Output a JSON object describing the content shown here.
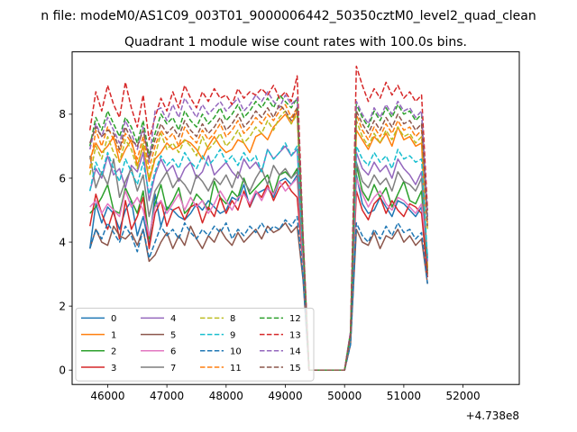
{
  "chart_data": {
    "type": "line",
    "suptitle": "n file: modeM0/AS1C09_003T01_9000006442_50350cztM0_level2_quad_clean",
    "title": "Quadrant 1 module wise count rates with 100.0s bins.",
    "xlabel": "",
    "ylabel": "",
    "x_offset_label": "+4.738e8",
    "xlim": [
      45400,
      52950
    ],
    "ylim": [
      -0.45,
      9.95
    ],
    "xticks": [
      46000,
      47000,
      48000,
      49000,
      50000,
      51000,
      52000
    ],
    "yticks": [
      0,
      2,
      4,
      6,
      8
    ],
    "x_start": 45700,
    "x_step": 100,
    "grid": false,
    "legend": {
      "placement": "lower-left",
      "columns": 4
    },
    "series": [
      {
        "name": "0",
        "color": "#1f77b4",
        "dash": "solid",
        "values": [
          3.8,
          5.2,
          4.6,
          5.1,
          4.9,
          4.4,
          5.0,
          5.3,
          4.2,
          4.8,
          3.9,
          5.5,
          4.5,
          5.1,
          5.0,
          4.8,
          4.7,
          4.9,
          5.2,
          5.0,
          5.3,
          5.1,
          4.9,
          5.0,
          5.4,
          5.3,
          5.8,
          5.1,
          5.5,
          5.6,
          5.7,
          5.4,
          5.9,
          6.0,
          5.8,
          6.1,
          3.4,
          0.0,
          0.0,
          0.0,
          0.0,
          0.0,
          0.0,
          0.0,
          1.0,
          6.1,
          5.2,
          4.9,
          5.0,
          5.4,
          5.1,
          4.8,
          5.3,
          5.2,
          5.0,
          4.8,
          5.1,
          3.1
        ]
      },
      {
        "name": "1",
        "color": "#ff7f0e",
        "dash": "solid",
        "values": [
          6.6,
          7.1,
          6.8,
          7.0,
          7.3,
          6.5,
          6.9,
          7.2,
          6.4,
          7.0,
          5.9,
          6.6,
          6.8,
          7.1,
          6.9,
          7.0,
          7.2,
          7.1,
          6.9,
          6.6,
          7.0,
          7.3,
          7.0,
          6.8,
          6.9,
          7.2,
          7.1,
          6.8,
          7.3,
          7.4,
          7.2,
          7.6,
          7.8,
          8.0,
          7.7,
          8.1,
          3.8,
          0.0,
          0.0,
          0.0,
          0.0,
          0.0,
          0.0,
          0.0,
          1.0,
          7.5,
          7.2,
          6.9,
          7.3,
          7.1,
          7.4,
          7.0,
          7.6,
          7.2,
          7.3,
          7.0,
          7.1,
          3.2
        ]
      },
      {
        "name": "2",
        "color": "#2ca02c",
        "dash": "solid",
        "values": [
          4.9,
          5.1,
          5.4,
          5.8,
          5.0,
          4.9,
          5.7,
          5.3,
          4.9,
          5.6,
          4.1,
          5.2,
          5.8,
          5.0,
          5.3,
          5.7,
          4.9,
          5.1,
          5.5,
          5.3,
          5.0,
          5.9,
          5.4,
          5.2,
          5.6,
          5.4,
          6.0,
          5.5,
          5.7,
          5.9,
          6.1,
          5.5,
          6.1,
          6.2,
          6.0,
          6.3,
          3.5,
          0.0,
          0.0,
          0.0,
          0.0,
          0.0,
          0.0,
          0.0,
          1.0,
          6.4,
          5.6,
          5.3,
          5.8,
          5.4,
          5.7,
          5.1,
          5.5,
          5.9,
          5.3,
          5.2,
          5.6,
          3.0
        ]
      },
      {
        "name": "3",
        "color": "#d62728",
        "dash": "solid",
        "values": [
          4.5,
          5.5,
          4.9,
          4.4,
          5.0,
          4.1,
          5.3,
          4.4,
          4.8,
          5.4,
          3.8,
          4.9,
          5.3,
          4.5,
          5.0,
          5.1,
          4.7,
          5.1,
          5.2,
          4.6,
          5.1,
          4.8,
          5.4,
          4.9,
          5.3,
          5.0,
          5.6,
          5.1,
          5.6,
          5.4,
          5.8,
          5.3,
          5.7,
          5.9,
          5.6,
          5.4,
          3.3,
          0.0,
          0.0,
          0.0,
          0.0,
          0.0,
          0.0,
          0.0,
          1.0,
          5.6,
          5.0,
          4.7,
          5.2,
          5.4,
          4.9,
          5.3,
          5.0,
          4.8,
          5.2,
          5.1,
          4.9,
          2.9
        ]
      },
      {
        "name": "4",
        "color": "#9467bd",
        "dash": "solid",
        "values": [
          5.6,
          6.3,
          6.0,
          6.7,
          6.1,
          6.3,
          5.7,
          6.4,
          6.2,
          6.8,
          5.3,
          6.1,
          6.6,
          6.2,
          6.4,
          5.9,
          6.3,
          6.5,
          6.0,
          6.2,
          6.7,
          6.1,
          6.3,
          6.5,
          6.2,
          6.0,
          6.6,
          6.3,
          6.5,
          6.2,
          6.9,
          6.6,
          6.8,
          7.0,
          6.7,
          6.9,
          3.7,
          0.0,
          0.0,
          0.0,
          0.0,
          0.0,
          0.0,
          0.0,
          1.0,
          6.8,
          6.3,
          6.1,
          6.5,
          6.2,
          6.4,
          6.0,
          6.6,
          6.3,
          6.1,
          5.8,
          6.2,
          3.4
        ]
      },
      {
        "name": "5",
        "color": "#8c564b",
        "dash": "solid",
        "values": [
          3.8,
          4.4,
          4.0,
          3.9,
          4.5,
          4.2,
          4.1,
          4.3,
          3.9,
          4.4,
          3.4,
          3.6,
          4.0,
          4.3,
          3.8,
          4.2,
          3.9,
          4.5,
          4.1,
          3.8,
          4.2,
          4.0,
          4.4,
          4.1,
          3.9,
          4.3,
          4.0,
          4.2,
          4.4,
          4.1,
          4.5,
          4.3,
          4.4,
          4.6,
          4.3,
          4.5,
          2.8,
          0.0,
          0.0,
          0.0,
          0.0,
          0.0,
          0.0,
          0.0,
          0.8,
          4.4,
          4.0,
          3.9,
          4.3,
          3.8,
          4.2,
          4.1,
          4.4,
          4.0,
          4.2,
          3.9,
          4.1,
          2.7
        ]
      },
      {
        "name": "6",
        "color": "#e377c2",
        "dash": "solid",
        "values": [
          5.1,
          5.3,
          4.9,
          5.2,
          5.0,
          4.8,
          5.6,
          5.1,
          5.4,
          5.0,
          4.2,
          5.1,
          5.3,
          4.9,
          5.2,
          5.5,
          5.0,
          5.4,
          5.1,
          5.3,
          4.9,
          5.2,
          5.6,
          5.3,
          5.0,
          5.4,
          5.5,
          5.2,
          5.6,
          5.3,
          5.7,
          5.5,
          5.9,
          5.6,
          5.8,
          6.0,
          3.4,
          0.0,
          0.0,
          0.0,
          0.0,
          0.0,
          0.0,
          0.0,
          1.0,
          6.0,
          5.5,
          5.1,
          5.4,
          5.6,
          5.2,
          5.0,
          5.4,
          5.3,
          5.1,
          4.9,
          5.2,
          3.6
        ]
      },
      {
        "name": "7",
        "color": "#7f7f7f",
        "dash": "solid",
        "values": [
          6.7,
          5.7,
          6.2,
          5.8,
          6.6,
          5.4,
          5.9,
          6.3,
          5.6,
          6.1,
          4.8,
          5.6,
          5.9,
          6.2,
          5.7,
          6.0,
          5.8,
          5.5,
          6.1,
          5.9,
          5.6,
          6.0,
          5.8,
          6.1,
          5.7,
          6.2,
          5.9,
          5.6,
          6.0,
          6.3,
          5.8,
          6.4,
          6.1,
          6.3,
          6.0,
          6.2,
          3.6,
          0.0,
          0.0,
          0.0,
          0.0,
          0.0,
          0.0,
          0.0,
          1.0,
          6.5,
          5.9,
          5.7,
          6.1,
          5.8,
          6.0,
          5.6,
          6.2,
          5.9,
          5.8,
          5.6,
          6.0,
          3.5
        ]
      },
      {
        "name": "8",
        "color": "#bcbd22",
        "dash": "dashed",
        "values": [
          6.1,
          7.0,
          6.6,
          7.3,
          6.8,
          6.5,
          7.2,
          6.9,
          6.3,
          7.1,
          6.0,
          6.7,
          7.4,
          6.9,
          7.1,
          6.8,
          7.2,
          7.0,
          6.7,
          7.3,
          6.9,
          7.1,
          7.4,
          7.0,
          7.2,
          7.5,
          7.1,
          7.3,
          7.6,
          7.4,
          7.8,
          7.5,
          7.9,
          8.1,
          7.7,
          8.0,
          3.9,
          0.0,
          0.0,
          0.0,
          0.0,
          0.0,
          0.0,
          0.0,
          1.1,
          7.8,
          7.3,
          7.0,
          7.4,
          7.1,
          7.5,
          7.2,
          7.6,
          7.3,
          7.4,
          7.1,
          7.3,
          4.4
        ]
      },
      {
        "name": "9",
        "color": "#17becf",
        "dash": "dashed",
        "values": [
          5.6,
          6.5,
          6.1,
          6.8,
          6.3,
          5.9,
          6.6,
          6.2,
          5.8,
          6.5,
          5.5,
          6.2,
          6.7,
          6.4,
          6.6,
          6.3,
          6.8,
          6.5,
          6.3,
          6.7,
          6.4,
          6.6,
          6.9,
          6.5,
          6.7,
          6.4,
          6.8,
          6.5,
          6.7,
          6.2,
          6.9,
          6.6,
          6.8,
          7.1,
          6.7,
          7.0,
          3.7,
          0.0,
          0.0,
          0.0,
          0.0,
          0.0,
          0.0,
          0.0,
          1.0,
          7.0,
          6.6,
          6.4,
          6.8,
          6.5,
          6.7,
          6.3,
          6.9,
          6.6,
          6.7,
          6.5,
          6.6,
          3.5
        ]
      },
      {
        "name": "10",
        "color": "#1f77b4",
        "dash": "dashed",
        "values": [
          3.8,
          4.4,
          4.1,
          4.6,
          4.3,
          4.0,
          4.5,
          4.2,
          3.7,
          4.4,
          3.5,
          4.0,
          4.5,
          4.2,
          4.4,
          4.1,
          4.6,
          4.3,
          4.1,
          4.4,
          4.2,
          4.5,
          4.3,
          4.6,
          4.1,
          4.4,
          4.2,
          4.5,
          4.3,
          4.6,
          4.3,
          4.5,
          4.4,
          4.7,
          4.5,
          4.8,
          2.9,
          0.0,
          0.0,
          0.0,
          0.0,
          0.0,
          0.0,
          0.0,
          0.8,
          4.6,
          4.2,
          4.0,
          4.4,
          4.1,
          4.5,
          4.2,
          4.6,
          4.3,
          4.4,
          4.1,
          4.3,
          2.7
        ]
      },
      {
        "name": "11",
        "color": "#ff7f0e",
        "dash": "dashed",
        "values": [
          6.3,
          7.5,
          7.0,
          7.6,
          7.2,
          6.8,
          7.4,
          7.1,
          6.6,
          7.3,
          6.3,
          7.0,
          7.5,
          7.2,
          7.4,
          7.0,
          7.6,
          7.3,
          7.1,
          7.5,
          7.2,
          7.4,
          7.7,
          7.3,
          7.5,
          7.8,
          7.4,
          7.6,
          7.9,
          7.7,
          8.0,
          7.8,
          8.1,
          8.3,
          7.9,
          8.2,
          4.0,
          0.0,
          0.0,
          0.0,
          0.0,
          0.0,
          0.0,
          0.0,
          1.1,
          8.0,
          7.5,
          7.2,
          7.6,
          7.3,
          7.7,
          7.4,
          7.8,
          7.5,
          7.6,
          7.3,
          7.5,
          4.6
        ]
      },
      {
        "name": "12",
        "color": "#2ca02c",
        "dash": "dashed",
        "values": [
          7.0,
          7.9,
          7.5,
          8.1,
          7.7,
          7.3,
          7.9,
          7.6,
          7.1,
          7.8,
          6.7,
          7.4,
          8.0,
          7.7,
          7.9,
          7.5,
          8.1,
          7.8,
          7.6,
          8.0,
          7.7,
          7.9,
          8.2,
          7.8,
          8.0,
          8.3,
          7.9,
          8.1,
          8.4,
          8.2,
          8.5,
          8.2,
          8.6,
          8.4,
          8.2,
          8.5,
          4.1,
          0.0,
          0.0,
          0.0,
          0.0,
          0.0,
          0.0,
          0.0,
          1.2,
          8.3,
          7.9,
          7.6,
          8.1,
          7.8,
          8.2,
          7.9,
          8.3,
          8.0,
          8.1,
          7.8,
          8.0,
          4.8
        ]
      },
      {
        "name": "13",
        "color": "#d62728",
        "dash": "dashed",
        "values": [
          7.5,
          8.7,
          8.1,
          8.9,
          8.3,
          7.9,
          9.0,
          8.2,
          7.6,
          8.6,
          7.2,
          7.9,
          8.5,
          8.1,
          8.7,
          8.2,
          8.9,
          8.5,
          8.2,
          8.7,
          8.4,
          8.8,
          8.5,
          8.6,
          8.3,
          8.8,
          8.5,
          8.7,
          8.6,
          8.8,
          8.6,
          8.9,
          8.5,
          8.7,
          8.4,
          9.2,
          4.2,
          0.0,
          0.0,
          0.0,
          0.0,
          0.0,
          0.0,
          0.0,
          1.2,
          9.5,
          8.9,
          8.4,
          8.8,
          8.5,
          9.0,
          8.6,
          8.9,
          8.5,
          8.7,
          8.4,
          8.6,
          5.0
        ]
      },
      {
        "name": "14",
        "color": "#9467bd",
        "dash": "dashed",
        "values": [
          6.9,
          7.7,
          7.3,
          7.9,
          7.5,
          7.1,
          7.8,
          7.4,
          6.9,
          7.6,
          6.5,
          8.1,
          8.2,
          7.8,
          8.3,
          7.9,
          8.5,
          8.2,
          7.9,
          8.3,
          8.0,
          8.2,
          8.4,
          8.1,
          8.3,
          8.5,
          8.1,
          8.3,
          8.6,
          8.4,
          8.7,
          8.4,
          8.2,
          8.6,
          8.3,
          8.5,
          4.1,
          0.0,
          0.0,
          0.0,
          0.0,
          0.0,
          0.0,
          0.0,
          1.2,
          8.4,
          8.0,
          7.7,
          8.2,
          7.9,
          8.3,
          8.0,
          8.4,
          8.1,
          8.2,
          7.9,
          8.1,
          4.7
        ]
      },
      {
        "name": "15",
        "color": "#8c564b",
        "dash": "dashed",
        "values": [
          7.1,
          7.6,
          7.3,
          7.5,
          7.4,
          6.9,
          7.6,
          7.2,
          7.0,
          7.5,
          6.6,
          7.2,
          7.7,
          7.4,
          7.6,
          7.3,
          7.8,
          7.5,
          7.3,
          7.7,
          7.4,
          7.6,
          7.9,
          7.5,
          7.7,
          8.0,
          7.6,
          7.8,
          8.1,
          7.9,
          8.2,
          7.9,
          8.3,
          8.1,
          7.8,
          8.2,
          4.0,
          0.0,
          0.0,
          0.0,
          0.0,
          0.0,
          0.0,
          0.0,
          1.1,
          8.1,
          7.7,
          7.4,
          7.8,
          7.5,
          7.9,
          7.6,
          8.0,
          7.7,
          7.8,
          7.5,
          7.7,
          4.5
        ]
      }
    ]
  }
}
